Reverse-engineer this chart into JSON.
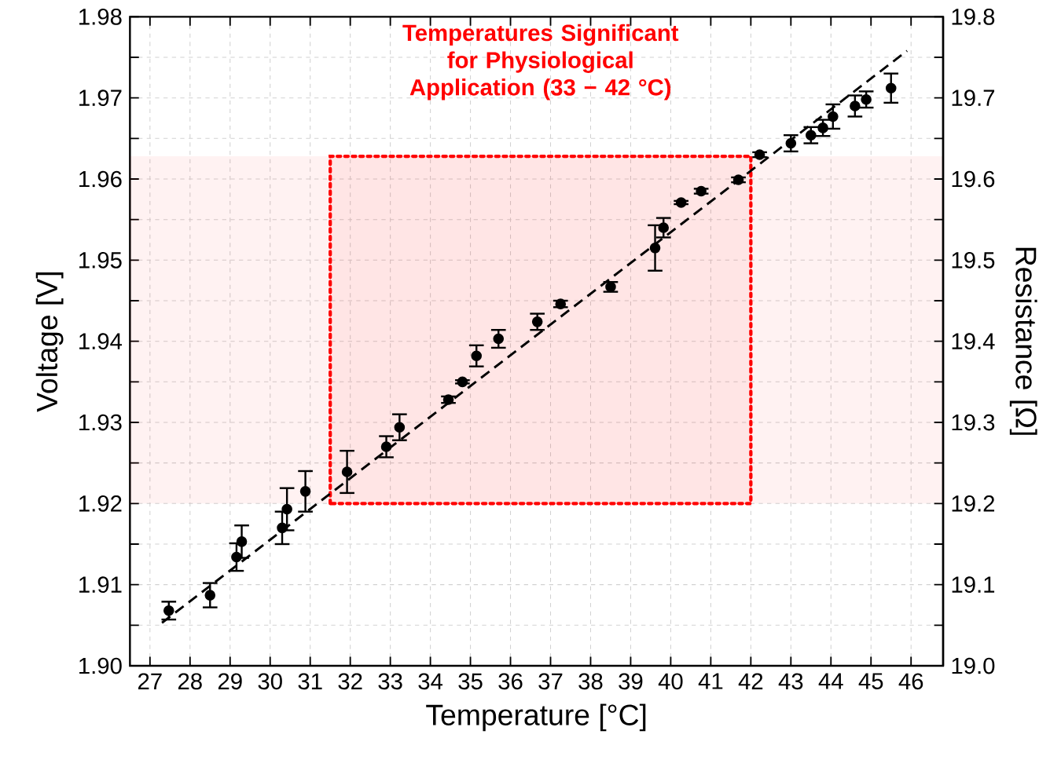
{
  "chart_data": {
    "type": "scatter",
    "xlabel": "Temperature [°C]",
    "ylabel": "Voltage [V]",
    "y2label": "Resistance [Ω]",
    "xlim": [
      26.5,
      46.8
    ],
    "xticks": [
      27,
      28,
      29,
      30,
      31,
      32,
      33,
      34,
      35,
      36,
      37,
      38,
      39,
      40,
      41,
      42,
      43,
      44,
      45,
      46
    ],
    "ylim": [
      1.9,
      1.98
    ],
    "yticks": [
      {
        "value": 1.9,
        "label": "1.90"
      },
      {
        "value": 1.905,
        "label": null
      },
      1.91,
      {
        "value": 1.915,
        "label": null
      },
      1.92,
      {
        "value": 1.925,
        "label": null
      },
      1.93,
      {
        "value": 1.935,
        "label": null
      },
      1.94,
      {
        "value": 1.945,
        "label": null
      },
      1.95,
      {
        "value": 1.955,
        "label": null
      },
      1.96,
      {
        "value": 1.965,
        "label": null
      },
      1.97,
      {
        "value": 1.975,
        "label": null
      },
      1.98
    ],
    "y2lim": [
      19.0,
      19.8
    ],
    "y2ticks": [
      {
        "value": 19.0,
        "label": "19.0"
      },
      {
        "value": 19.05,
        "label": null
      },
      19.1,
      {
        "value": 19.15,
        "label": null
      },
      19.2,
      {
        "value": 19.25,
        "label": null
      },
      19.3,
      {
        "value": 19.35,
        "label": null
      },
      19.4,
      {
        "value": 19.45,
        "label": null
      },
      19.5,
      {
        "value": 19.55,
        "label": null
      },
      19.6,
      {
        "value": 19.65,
        "label": null
      },
      19.7,
      {
        "value": 19.75,
        "label": null
      },
      19.8
    ],
    "grid": true,
    "series": [
      {
        "color": "#000000",
        "marker": "circle",
        "x": [
          27.47,
          28.5,
          29.16,
          29.29,
          30.3,
          30.42,
          30.88,
          31.92,
          32.9,
          33.23,
          34.45,
          34.8,
          35.15,
          35.7,
          36.67,
          37.25,
          38.5,
          39.61,
          39.82,
          40.26,
          40.76,
          41.69,
          42.22,
          43.0,
          43.5,
          43.8,
          44.05,
          44.6,
          44.88,
          45.5
        ],
        "values": [
          1.9068,
          1.9087,
          1.9134,
          1.9153,
          1.917,
          1.9193,
          1.9215,
          1.9239,
          1.927,
          1.9294,
          1.9328,
          1.935,
          1.9382,
          1.9403,
          1.9424,
          1.9446,
          1.9467,
          1.9515,
          1.954,
          1.9571,
          1.9585,
          1.9599,
          1.963,
          1.9644,
          1.9654,
          1.9663,
          1.9677,
          1.969,
          1.9698,
          1.9712
        ],
        "errors": [
          0.0011,
          0.0015,
          0.0017,
          0.002,
          0.002,
          0.0026,
          0.0025,
          0.0026,
          0.0013,
          0.0016,
          0.0004,
          0.0002,
          0.0013,
          0.0011,
          0.001,
          0.0004,
          0.0006,
          0.0028,
          0.0012,
          0.0002,
          0.0003,
          0.0003,
          0.0003,
          0.001,
          0.001,
          0.001,
          0.0015,
          0.0013,
          0.001,
          0.0018
        ]
      },
      {
        "type": "line",
        "color": "#000000",
        "marker": "none",
        "line_style": "dashed",
        "x": [
          27.3,
          45.9
        ],
        "values": [
          1.9053,
          1.9758
        ]
      }
    ],
    "bands": [
      {
        "axis": "x",
        "from": 31.5,
        "to": 42.0,
        "label": "Temperatures Significant for Physiological Application (33 − 42 °C)",
        "color": "#ff0000"
      },
      {
        "axis": "y",
        "from": 1.92,
        "to": 1.9628,
        "color": "#ff0000"
      }
    ]
  }
}
